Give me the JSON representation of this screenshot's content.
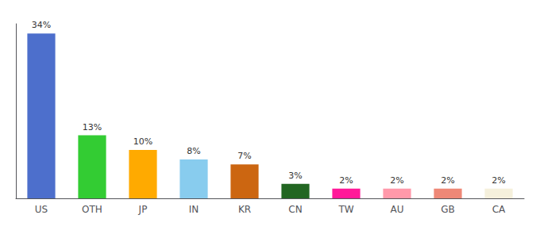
{
  "chart_data": {
    "type": "bar",
    "categories": [
      "US",
      "OTH",
      "JP",
      "IN",
      "KR",
      "CN",
      "TW",
      "AU",
      "GB",
      "CA"
    ],
    "values": [
      34,
      13,
      10,
      8,
      7,
      3,
      2,
      2,
      2,
      2
    ],
    "value_labels": [
      "34%",
      "13%",
      "10%",
      "8%",
      "7%",
      "3%",
      "2%",
      "2%",
      "2%",
      "2%"
    ],
    "colors": [
      "#4d6fcc",
      "#33cc33",
      "#ffaa00",
      "#88ccee",
      "#cc6611",
      "#226622",
      "#ff1999",
      "#ff99aa",
      "#ee8877",
      "#f5f0dc"
    ],
    "ylim": [
      0,
      36
    ],
    "data_labels": true,
    "tick_labels": "x",
    "grid": false
  }
}
